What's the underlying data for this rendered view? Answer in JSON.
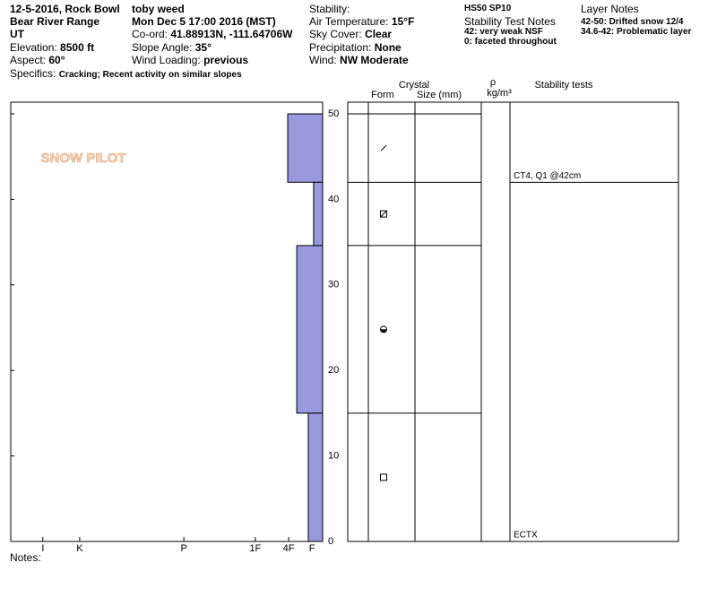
{
  "header": {
    "place": "12-5-2016, Rock Bowl",
    "range": "Bear River Range",
    "state": "UT",
    "elevation_label": "Elevation:",
    "elevation": "8500 ft",
    "aspect_label": "Aspect:",
    "aspect": "60°",
    "specifics_label": "Specifics:",
    "specifics": "Cracking; Recent activity on similar slopes",
    "observer": "toby weed",
    "date": "Mon Dec 5 17:00 2016 (MST)",
    "coord_label": "Co-ord:",
    "coord": "41.88913N, -111.64706W",
    "slope_label": "Slope Angle:",
    "slope": "35°",
    "wind_loading_label": "Wind Loading:",
    "wind_loading": "previous",
    "stability_label": "Stability:",
    "air_temp_label": "Air Temperature:",
    "air_temp": "15°F",
    "sky_label": "Sky Cover:",
    "sky": "Clear",
    "precip_label": "Precipitation:",
    "precip": "None",
    "wind_label": "Wind:",
    "wind": "NW Moderate",
    "hs": "HS50 SP10",
    "test_notes_title": "Stability Test Notes",
    "test_notes": [
      "42: very weak NSF",
      "0: faceted throughout"
    ],
    "layer_notes_title": "Layer Notes",
    "layer_notes": [
      "42-50: Drifted snow 12/4",
      "34.6-42: Problematic layer"
    ],
    "notes_label": "Notes:",
    "logo": "SNOW PILOT"
  },
  "chart_data": {
    "type": "snow-profile",
    "xlim": [
      0,
      100
    ],
    "xticks": [
      {
        "value": 89.7,
        "label": "I"
      },
      {
        "value": 77.9,
        "label": "K"
      },
      {
        "value": 44.5,
        "label": "P"
      },
      {
        "value": 21.6,
        "label": "1F"
      },
      {
        "value": 10.9,
        "label": "4F"
      },
      {
        "value": 3.4,
        "label": "F"
      }
    ],
    "ylim": [
      0,
      50
    ],
    "yticks": [
      0,
      10,
      20,
      30,
      40,
      50
    ],
    "color": "#9999dd",
    "layers": [
      {
        "top": 50,
        "bottom": 42,
        "hardness": 11.2
      },
      {
        "top": 42,
        "bottom": 34.6,
        "hardness": 2.9
      },
      {
        "top": 34.6,
        "bottom": 15,
        "hardness": 8.3
      },
      {
        "top": 15,
        "bottom": 0,
        "hardness": 4.6
      }
    ],
    "columns": {
      "crystal": "Crystal",
      "form": "Form",
      "size": "Size (mm)",
      "density": "ρ",
      "density_unit": "kg/m³",
      "tests": "Stability tests"
    },
    "tests": [
      {
        "depth": 42,
        "label": "CT4, Q1 @42cm"
      },
      {
        "depth": 0,
        "label": "ECTX"
      }
    ]
  }
}
